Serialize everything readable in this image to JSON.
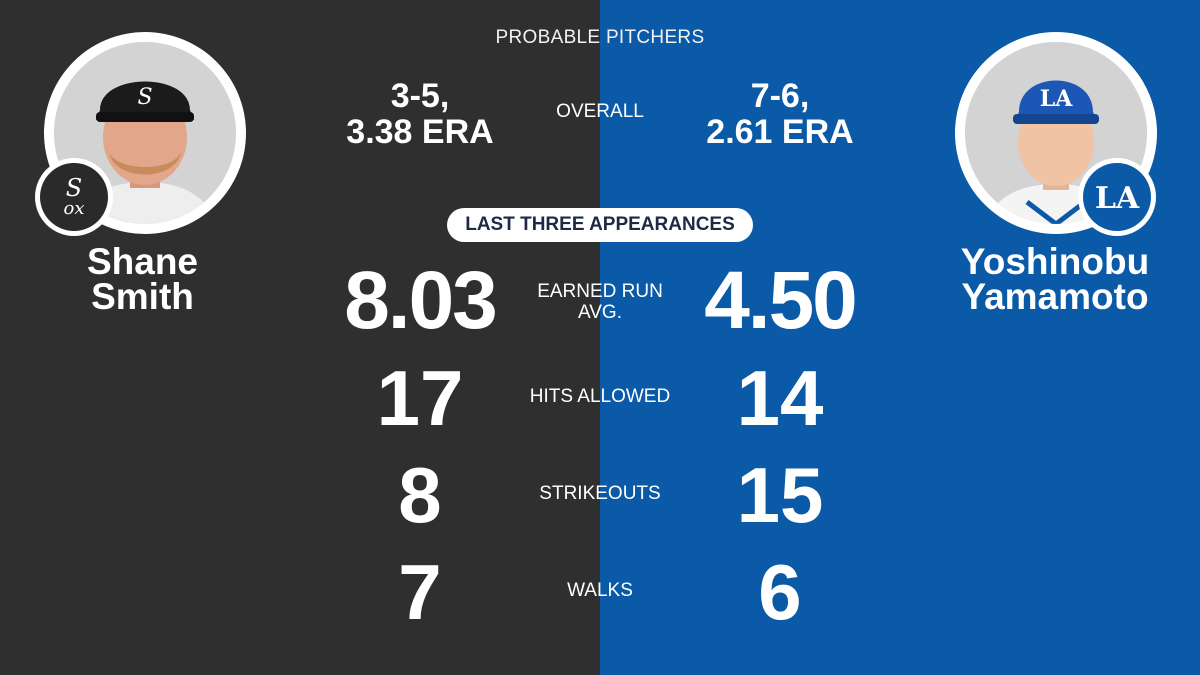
{
  "header": {
    "title": "PROBABLE PITCHERS"
  },
  "colors": {
    "left_bg": "#2f2f2f",
    "right_bg": "#0b5aa8",
    "pill_text": "#1e2a44"
  },
  "left_pitcher": {
    "first_name": "Shane",
    "last_name": "Smith",
    "team_logo": "white-sox-logo",
    "overall_line1": "3-5,",
    "overall_line2": "3.38 ERA",
    "era": "8.03",
    "hits_allowed": "17",
    "strikeouts": "8",
    "walks": "7"
  },
  "right_pitcher": {
    "first_name": "Yoshinobu",
    "last_name": "Yamamoto",
    "team_logo": "dodgers-logo",
    "overall_line1": "7-6,",
    "overall_line2": "2.61 ERA",
    "era": "4.50",
    "hits_allowed": "14",
    "strikeouts": "15",
    "walks": "6"
  },
  "labels": {
    "overall": "OVERALL",
    "last_three": "LAST THREE APPEARANCES",
    "era_line1": "EARNED RUN",
    "era_line2": "AVG.",
    "hits": "HITS ALLOWED",
    "strikeouts": "STRIKEOUTS",
    "walks": "WALKS"
  }
}
